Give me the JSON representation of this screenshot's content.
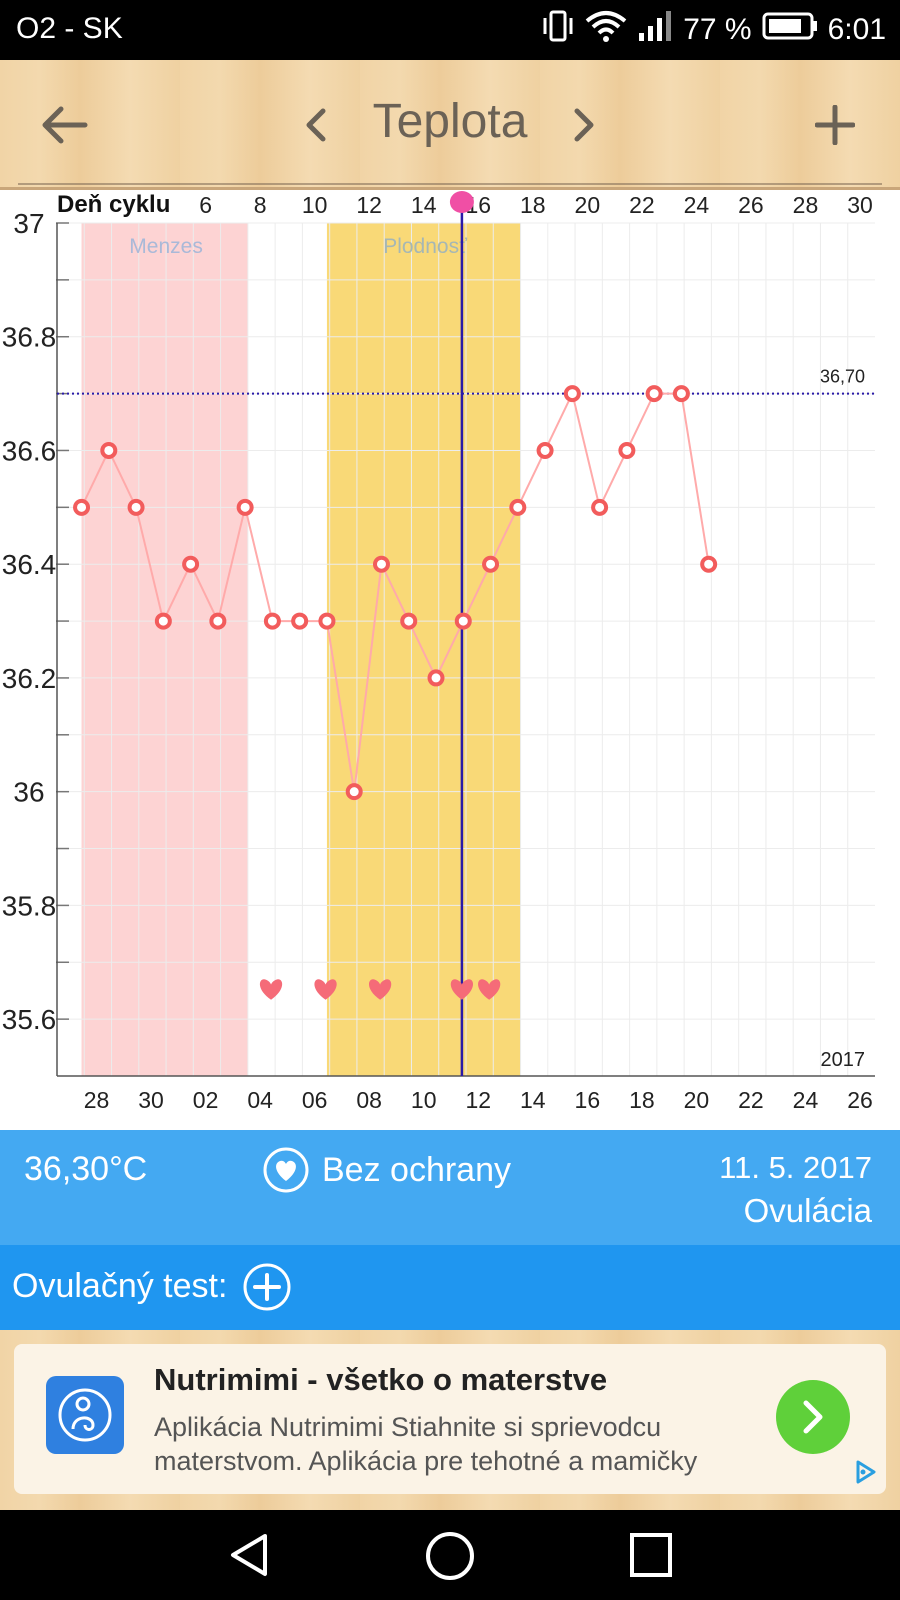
{
  "status_bar": {
    "carrier": "O2 - SK",
    "battery": "77 %",
    "time": "6:01"
  },
  "header": {
    "title": "Teplota"
  },
  "chart_data": {
    "type": "line",
    "top_axis_label": "Deň cyklu",
    "top_ticks": [
      "6",
      "8",
      "10",
      "12",
      "14",
      "16",
      "18",
      "20",
      "22",
      "24",
      "26",
      "28",
      "30"
    ],
    "top_tick_days": [
      6,
      8,
      10,
      12,
      14,
      16,
      18,
      20,
      22,
      24,
      26,
      28,
      30
    ],
    "bottom_ticks": [
      "28",
      "30",
      "02",
      "04",
      "06",
      "08",
      "10",
      "12",
      "14",
      "16",
      "18",
      "20",
      "22",
      "24",
      "26"
    ],
    "bottom_tick_days": [
      2,
      4,
      6,
      8,
      10,
      12,
      14,
      16,
      18,
      20,
      22,
      24,
      26,
      28,
      30
    ],
    "y_ticks": [
      "37",
      "36.8",
      "36.6",
      "36.4",
      "36.2",
      "36",
      "35.8",
      "35.6"
    ],
    "y_tick_values": [
      37.0,
      36.8,
      36.6,
      36.4,
      36.2,
      36.0,
      35.8,
      35.6
    ],
    "ylim": [
      35.5,
      37.0
    ],
    "xlim": [
      0,
      30
    ],
    "x_cycle_day": [
      1,
      2,
      3,
      4,
      5,
      6,
      7,
      8,
      9,
      10,
      11,
      12,
      13,
      14,
      15,
      16,
      17,
      18,
      19,
      20,
      21,
      22,
      23,
      24
    ],
    "y": [
      36.5,
      36.6,
      36.5,
      36.3,
      36.4,
      36.3,
      36.5,
      36.3,
      36.3,
      36.3,
      36.0,
      36.4,
      36.3,
      36.2,
      36.3,
      36.4,
      36.5,
      36.6,
      36.7,
      36.5,
      36.6,
      36.7,
      36.7,
      36.4
    ],
    "reference_line": {
      "value": 36.7,
      "label": "36,70"
    },
    "bands": [
      {
        "label": "Menzes",
        "from_day": 1,
        "to_day": 7,
        "color": "#fdd3d3"
      },
      {
        "label": "Plodnosť",
        "from_day": 10,
        "to_day": 17,
        "color": "#f9d977"
      }
    ],
    "hearts_days": [
      8,
      10,
      12,
      15,
      16
    ],
    "hearts_value": 35.65,
    "current_day": 15,
    "year_label": "2017",
    "line_color": "#ffaaaa",
    "point_color": "#f25c5c",
    "current_line_color": "#2a1aa8"
  },
  "info": {
    "temperature": "36,30°C",
    "protection": "Bez ochrany",
    "date": "11. 5. 2017",
    "phase": "Ovulácia"
  },
  "test": {
    "label": "Ovulačný test:"
  },
  "ad": {
    "title": "Nutrimimi - všetko o materstve",
    "description": "Aplikácia Nutrimimi Stiahnite si sprievodcu materstvom. Aplikácia pre tehotné a mamičky"
  }
}
